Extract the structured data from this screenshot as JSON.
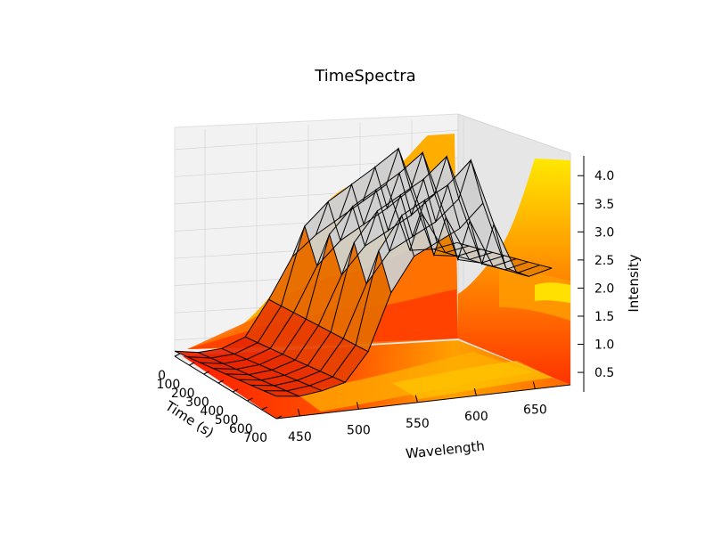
{
  "chart_data": {
    "type": "surface",
    "title": "TimeSpectra",
    "xlabel": "Time (s)",
    "ylabel": "Wavelength",
    "zlabel": "Intensity",
    "x_ticks": [
      "0",
      "100",
      "200",
      "300",
      "400",
      "500",
      "600",
      "700"
    ],
    "y_ticks": [
      "450",
      "500",
      "550",
      "600",
      "650"
    ],
    "z_ticks": [
      "0.5",
      "1.0",
      "1.5",
      "2.0",
      "2.5",
      "3.0",
      "3.5",
      "4.0"
    ],
    "xlim": [
      0,
      700
    ],
    "ylim": [
      430,
      680
    ],
    "zlim": [
      0.2,
      4.4
    ],
    "colormap": "autumn",
    "wireframe": true,
    "contour_projections": [
      "time-wavelength floor",
      "time-intensity back wall",
      "wavelength-intensity side wall"
    ],
    "surface_profile": {
      "wavelength": [
        430,
        450,
        470,
        490,
        510,
        530,
        550,
        570,
        590,
        610,
        630,
        650,
        670
      ],
      "intensity_at_t700": [
        0.6,
        0.55,
        0.6,
        0.7,
        1.2,
        2.2,
        2.8,
        3.0,
        3.2,
        3.6,
        2.4,
        2.2,
        2.3
      ],
      "intensity_at_t0": [
        0.3,
        0.25,
        0.3,
        0.5,
        1.2,
        2.0,
        2.4,
        2.7,
        3.0,
        3.3,
        2.0,
        2.0,
        2.1
      ]
    },
    "grid": true
  }
}
